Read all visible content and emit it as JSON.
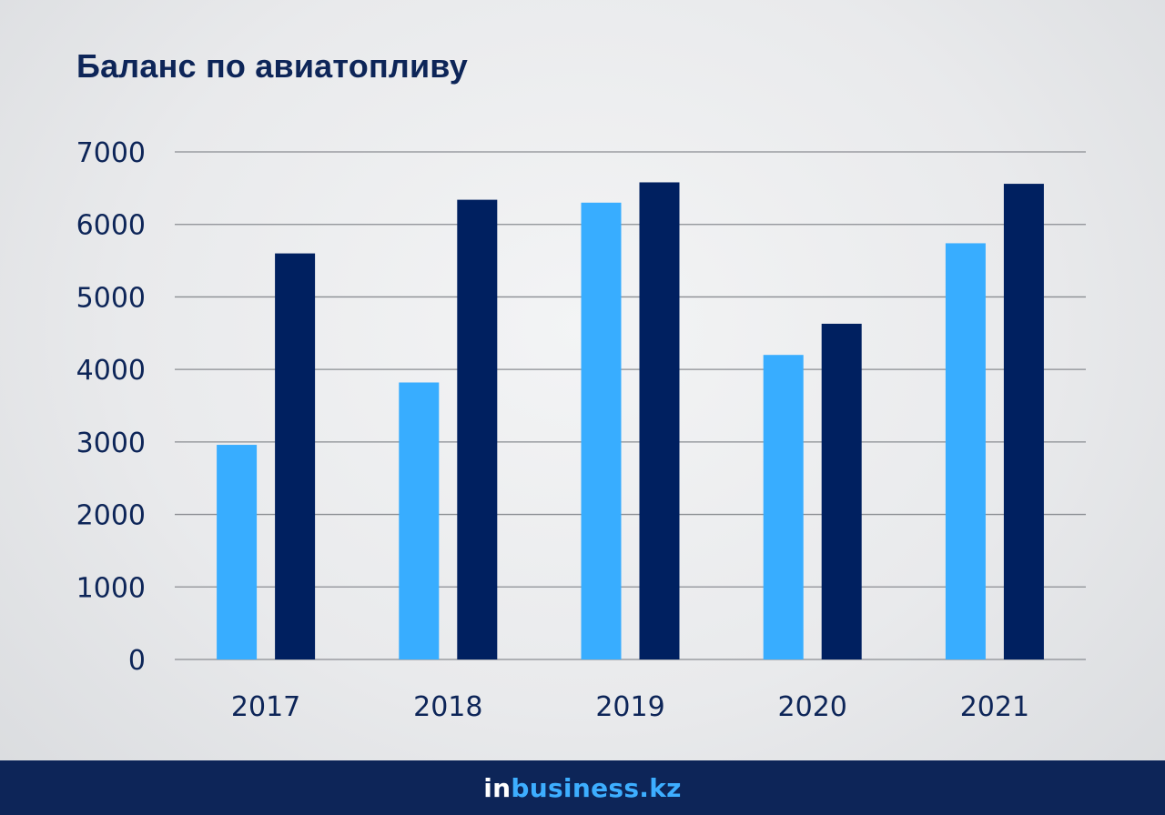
{
  "title": "Баланс по авиатопливу",
  "brand": {
    "prefix": "in",
    "name": "business.kz"
  },
  "colors": {
    "title": "#0d2558",
    "series_light": "#38adff",
    "series_dark": "#002060",
    "footer": "#0d2558",
    "brand_accent": "#3daeff",
    "gridline": "#8a8d92",
    "tick_text": "#0d2558"
  },
  "chart_data": {
    "type": "bar",
    "title": "Баланс по авиатопливу",
    "xlabel": "",
    "ylabel": "",
    "categories": [
      "2017",
      "2018",
      "2019",
      "2020",
      "2021"
    ],
    "series": [
      {
        "color": "#38adff",
        "values": [
          2960,
          3820,
          6300,
          4200,
          5740
        ]
      },
      {
        "color": "#002060",
        "values": [
          5600,
          6340,
          6580,
          4630,
          6560
        ]
      }
    ],
    "ylim": [
      0,
      7000
    ],
    "yticks": [
      "0",
      "1000",
      "2000",
      "3000",
      "4000",
      "5000",
      "6000",
      "7000"
    ],
    "grid": true,
    "legend": "none"
  }
}
